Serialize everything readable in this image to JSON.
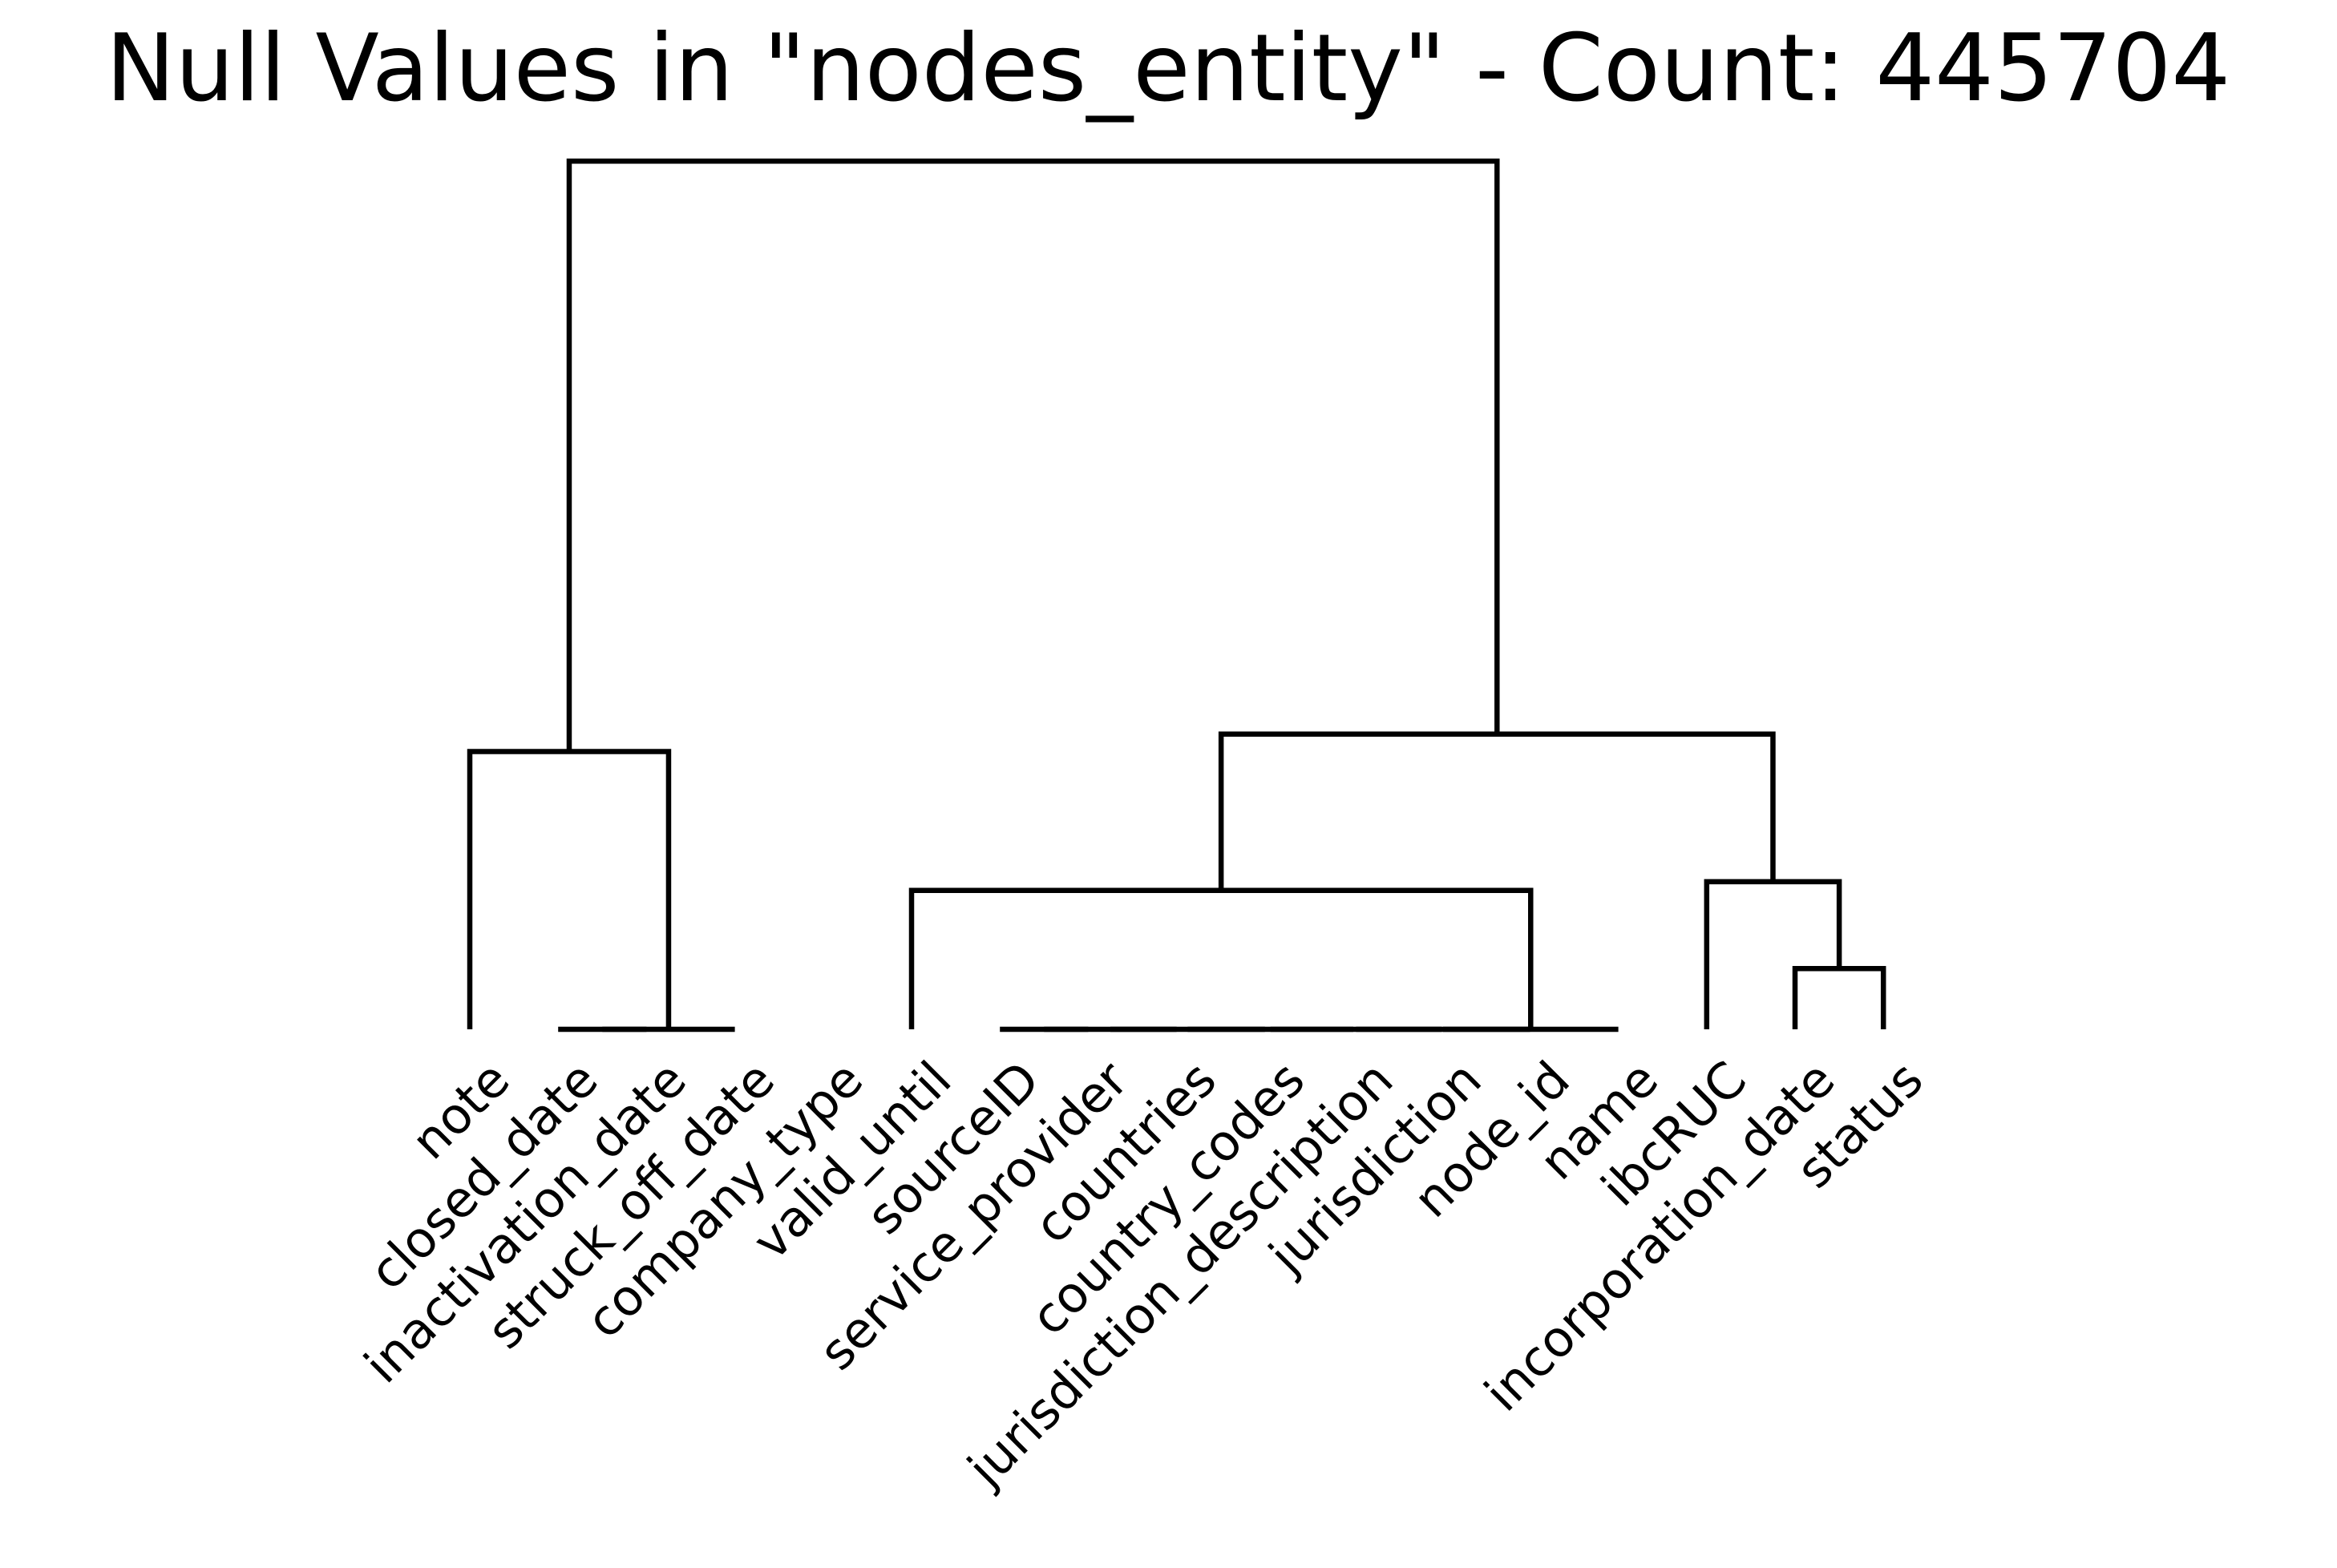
{
  "chart_data": {
    "type": "dendrogram",
    "title": "Null Values in \"nodes_entity\" - Count: 445704",
    "xlabel": "",
    "ylabel": "",
    "leaves": [
      "note",
      "closed_date",
      "inactivation_date",
      "struck_off_date",
      "company_type",
      "valid_until",
      "sourceID",
      "service_provider",
      "countries",
      "country_codes",
      "jurisdiction_description",
      "jurisdiction",
      "node_id",
      "name",
      "ibcRUC",
      "incorporation_date",
      "status"
    ],
    "merges": [
      {
        "left": "closed_date",
        "right": "inactivation_date",
        "height": 0
      },
      {
        "left": "closed_date+inactivation_date",
        "right": "struck_off_date",
        "height": 0
      },
      {
        "left": "sourceID",
        "right": "service_provider",
        "height": 0
      },
      {
        "left": "sourceID+service_provider",
        "right": "countries",
        "height": 0
      },
      {
        "left": "sourceID+...+countries",
        "right": "country_codes",
        "height": 0
      },
      {
        "left": "sourceID+...+country_codes",
        "right": "jurisdiction_description",
        "height": 0
      },
      {
        "left": "sourceID+...+jurisdiction_description",
        "right": "jurisdiction",
        "height": 0
      },
      {
        "left": "sourceID+...+jurisdiction",
        "right": "node_id",
        "height": 0
      },
      {
        "left": "sourceID+...+node_id",
        "right": "name",
        "height": 0
      },
      {
        "left": "incorporation_date",
        "right": "status",
        "height": 0.07
      },
      {
        "left": "ibcRUC",
        "right": "incorporation_date+status",
        "height": 0.17
      },
      {
        "left": "valid_until",
        "right": "sourceID..name",
        "height": 0.16
      },
      {
        "left": "note",
        "right": "closed_date..struck_off_date",
        "height": 0.32
      },
      {
        "left": "valid_until..name",
        "right": "ibcRUC..status",
        "height": 0.34
      },
      {
        "left": "note..struck_off_date",
        "right": "valid_until..status",
        "height": 1.0
      }
    ],
    "unmerged": [
      "company_type"
    ],
    "axes_visible": false,
    "grid": false
  }
}
